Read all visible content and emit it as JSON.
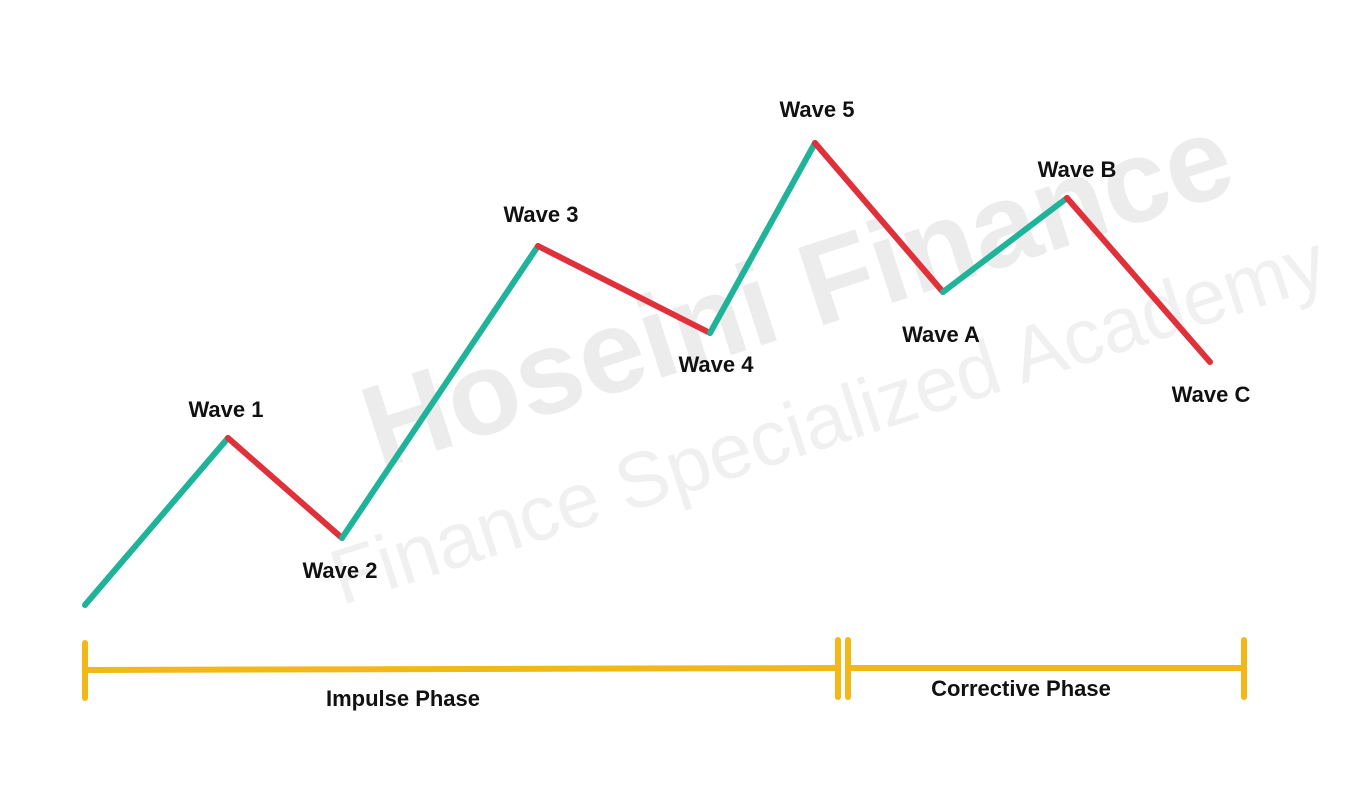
{
  "watermark": {
    "title": "Hoseini Finance",
    "subtitle": "Finance Specialized Academy"
  },
  "waves": [
    "Wave 1",
    "Wave 2",
    "Wave 3",
    "Wave 4",
    "Wave 5",
    "Wave A",
    "Wave B",
    "Wave C"
  ],
  "phases": [
    "Impulse Phase",
    "Corrective Phase"
  ]
}
